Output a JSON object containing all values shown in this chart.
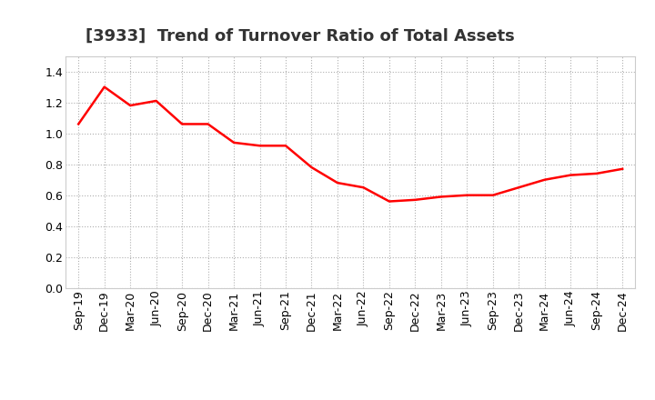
{
  "title": "[3933]  Trend of Turnover Ratio of Total Assets",
  "x_labels": [
    "Sep-19",
    "Dec-19",
    "Mar-20",
    "Jun-20",
    "Sep-20",
    "Dec-20",
    "Mar-21",
    "Jun-21",
    "Sep-21",
    "Dec-21",
    "Mar-22",
    "Jun-22",
    "Sep-22",
    "Dec-22",
    "Mar-23",
    "Jun-23",
    "Sep-23",
    "Dec-23",
    "Mar-24",
    "Jun-24",
    "Sep-24",
    "Dec-24"
  ],
  "y_values": [
    1.06,
    1.3,
    1.18,
    1.21,
    1.06,
    1.06,
    0.94,
    0.92,
    0.92,
    0.78,
    0.68,
    0.65,
    0.56,
    0.57,
    0.59,
    0.6,
    0.6,
    0.65,
    0.7,
    0.73,
    0.74,
    0.77
  ],
  "line_color": "#ff0000",
  "line_width": 1.8,
  "background_color": "#ffffff",
  "plot_bg_color": "#ffffff",
  "ylim": [
    0.0,
    1.5
  ],
  "yticks": [
    0.0,
    0.2,
    0.4,
    0.6,
    0.8,
    1.0,
    1.2,
    1.4
  ],
  "grid_color": "#b0b0b0",
  "title_fontsize": 13,
  "tick_fontsize": 9,
  "title_color": "#333333"
}
